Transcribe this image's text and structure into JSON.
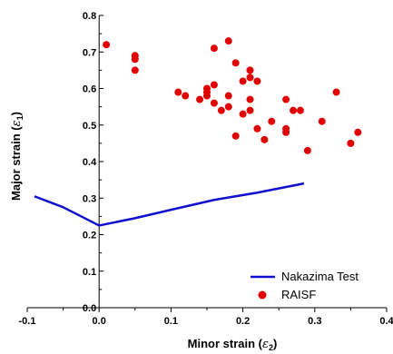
{
  "chart_data": {
    "type": "scatter",
    "xlabel": "Minor strain (ε2)",
    "xlabel_main": "Minor strain (",
    "xlabel_sym": "ε",
    "xlabel_sub": "2",
    "xlabel_close": ")",
    "ylabel": "Major strain (ε1)",
    "ylabel_main": "Major strain (",
    "ylabel_sym": "ε",
    "ylabel_sub": "1",
    "ylabel_close": ")",
    "xlim": [
      -0.1,
      0.4
    ],
    "ylim": [
      0.0,
      0.8
    ],
    "xticks": [
      -0.1,
      0.0,
      0.1,
      0.2,
      0.3,
      0.4
    ],
    "xtick_labels": [
      "-0.1",
      "0.0",
      "0.1",
      "0.2",
      "0.3",
      "0.4"
    ],
    "yticks": [
      0.0,
      0.1,
      0.2,
      0.3,
      0.4,
      0.5,
      0.6,
      0.7,
      0.8
    ],
    "ytick_labels": [
      "0.0",
      "0.1",
      "0.2",
      "0.3",
      "0.4",
      "0.5",
      "0.6",
      "0.7",
      "0.8"
    ],
    "grid": false,
    "legend_position": "bottom-right",
    "series": [
      {
        "name": "Nakazima Test",
        "kind": "line",
        "color": "#1010d0",
        "x": [
          -0.09,
          -0.05,
          0.0,
          0.05,
          0.1,
          0.16,
          0.22,
          0.285
        ],
        "y": [
          0.305,
          0.275,
          0.225,
          0.245,
          0.268,
          0.295,
          0.315,
          0.34
        ]
      },
      {
        "name": "RAISF",
        "kind": "scatter",
        "color": "#e00000",
        "x": [
          0.01,
          0.05,
          0.05,
          0.05,
          0.11,
          0.12,
          0.14,
          0.15,
          0.15,
          0.15,
          0.16,
          0.16,
          0.16,
          0.17,
          0.18,
          0.18,
          0.18,
          0.19,
          0.19,
          0.2,
          0.2,
          0.21,
          0.21,
          0.21,
          0.21,
          0.22,
          0.22,
          0.23,
          0.24,
          0.26,
          0.26,
          0.26,
          0.27,
          0.28,
          0.29,
          0.31,
          0.33,
          0.35,
          0.36
        ],
        "y": [
          0.72,
          0.69,
          0.68,
          0.65,
          0.59,
          0.58,
          0.57,
          0.6,
          0.59,
          0.58,
          0.71,
          0.61,
          0.56,
          0.54,
          0.73,
          0.58,
          0.55,
          0.67,
          0.47,
          0.62,
          0.53,
          0.65,
          0.63,
          0.57,
          0.54,
          0.62,
          0.49,
          0.46,
          0.51,
          0.57,
          0.49,
          0.48,
          0.54,
          0.54,
          0.43,
          0.51,
          0.59,
          0.45,
          0.48
        ]
      }
    ]
  }
}
